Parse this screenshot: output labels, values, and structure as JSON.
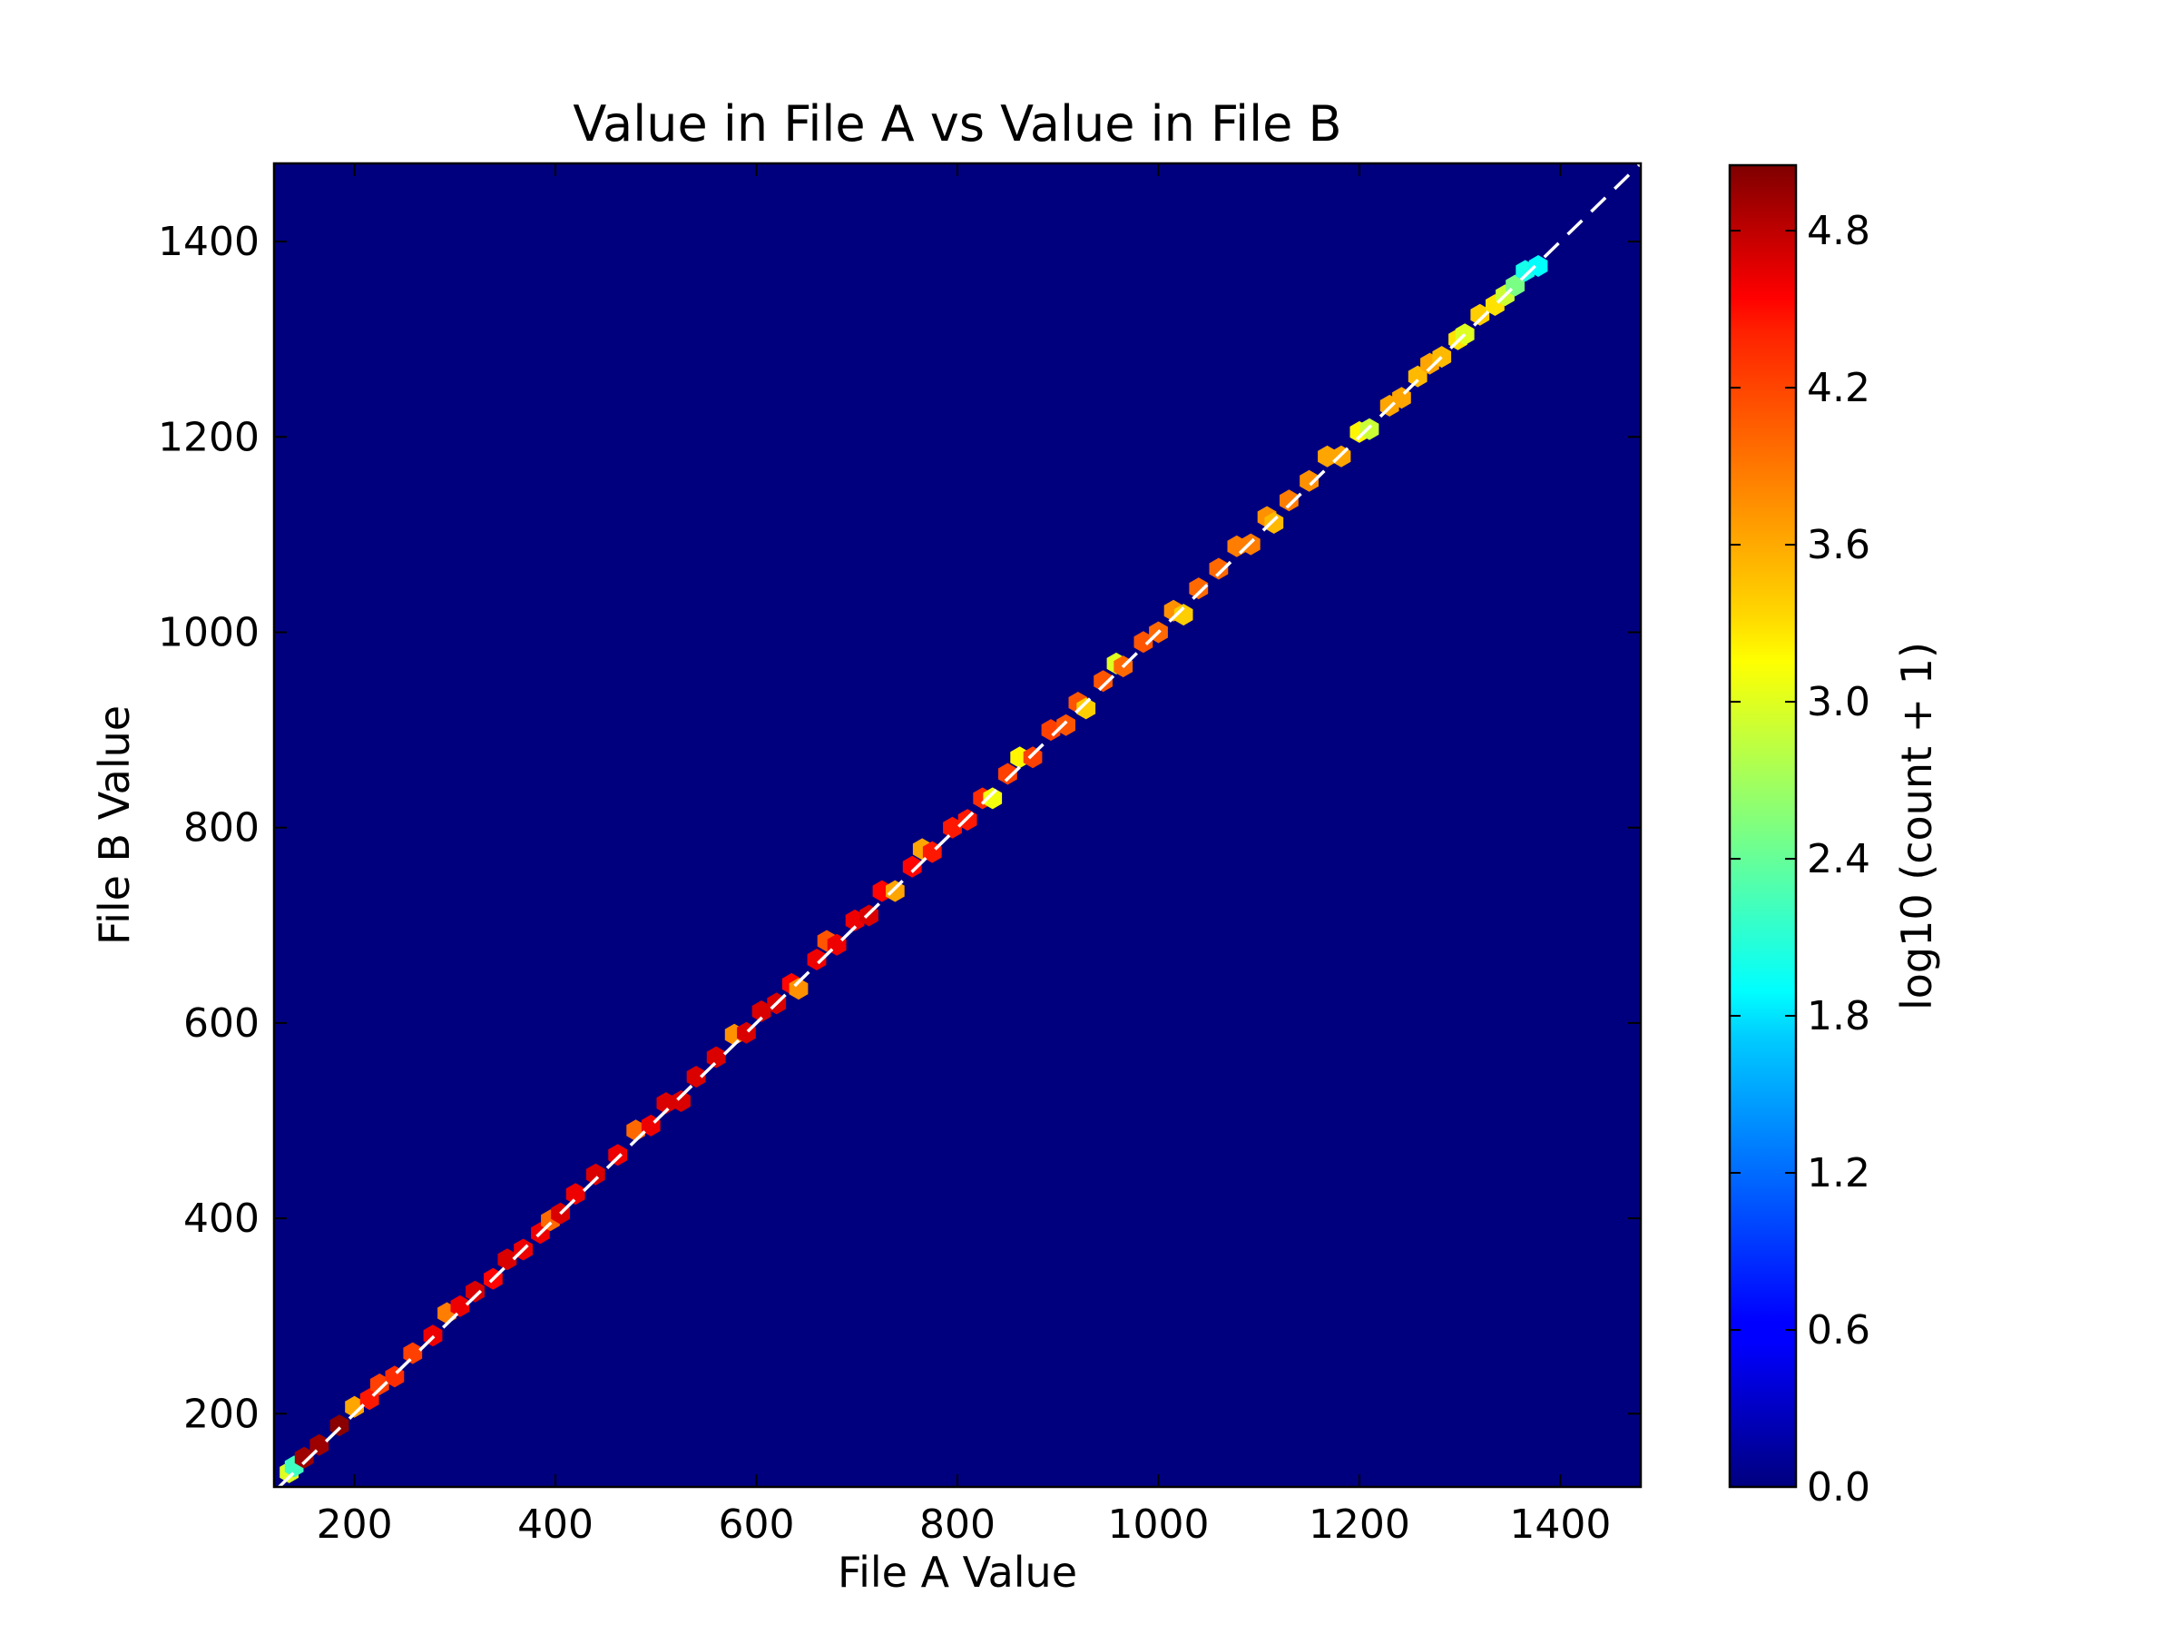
{
  "chart_data": {
    "type": "hexbin",
    "title": "Value in File A vs Value in File B",
    "xlabel": "File A Value",
    "ylabel": "File B Value",
    "xlim": [
      120,
      1480
    ],
    "ylim": [
      125,
      1480
    ],
    "xticks": [
      200,
      400,
      600,
      800,
      1000,
      1200,
      1400
    ],
    "yticks": [
      200,
      400,
      600,
      800,
      1000,
      1200,
      1400
    ],
    "background_color": "#00007f",
    "reference_line": {
      "style": "dashed",
      "color": "#ffffff",
      "from": [
        120,
        120
      ],
      "to": [
        1480,
        1480
      ]
    },
    "colorbar": {
      "label": "log10 (count + 1)",
      "range": [
        0,
        5.05
      ],
      "ticks": [
        "0.0",
        "0.6",
        "1.2",
        "1.8",
        "2.4",
        "3.0",
        "3.6",
        "4.2",
        "4.8"
      ],
      "colormap": "jet"
    },
    "points": [
      {
        "x": 135,
        "y": 140,
        "c": 3.0
      },
      {
        "x": 140,
        "y": 146,
        "c": 2.2
      },
      {
        "x": 150,
        "y": 155,
        "c": 4.9
      },
      {
        "x": 165,
        "y": 168,
        "c": 4.9
      },
      {
        "x": 185,
        "y": 188,
        "c": 5.0
      },
      {
        "x": 200,
        "y": 207,
        "c": 3.6
      },
      {
        "x": 215,
        "y": 215,
        "c": 4.3
      },
      {
        "x": 225,
        "y": 230,
        "c": 4.1
      },
      {
        "x": 240,
        "y": 238,
        "c": 4.2
      },
      {
        "x": 258,
        "y": 262,
        "c": 4.1
      },
      {
        "x": 278,
        "y": 280,
        "c": 4.5
      },
      {
        "x": 292,
        "y": 303,
        "c": 3.8
      },
      {
        "x": 305,
        "y": 310,
        "c": 4.5
      },
      {
        "x": 320,
        "y": 325,
        "c": 4.6
      },
      {
        "x": 338,
        "y": 338,
        "c": 4.4
      },
      {
        "x": 352,
        "y": 358,
        "c": 4.6
      },
      {
        "x": 368,
        "y": 368,
        "c": 4.5
      },
      {
        "x": 385,
        "y": 385,
        "c": 4.5
      },
      {
        "x": 395,
        "y": 398,
        "c": 3.9
      },
      {
        "x": 405,
        "y": 405,
        "c": 4.6
      },
      {
        "x": 420,
        "y": 425,
        "c": 4.5
      },
      {
        "x": 440,
        "y": 445,
        "c": 4.6
      },
      {
        "x": 462,
        "y": 465,
        "c": 4.5
      },
      {
        "x": 480,
        "y": 490,
        "c": 3.9
      },
      {
        "x": 495,
        "y": 495,
        "c": 4.5
      },
      {
        "x": 510,
        "y": 518,
        "c": 4.6
      },
      {
        "x": 525,
        "y": 520,
        "c": 4.6
      },
      {
        "x": 540,
        "y": 545,
        "c": 4.6
      },
      {
        "x": 560,
        "y": 565,
        "c": 4.6
      },
      {
        "x": 578,
        "y": 588,
        "c": 3.7
      },
      {
        "x": 590,
        "y": 590,
        "c": 4.6
      },
      {
        "x": 605,
        "y": 612,
        "c": 4.6
      },
      {
        "x": 620,
        "y": 620,
        "c": 4.6
      },
      {
        "x": 635,
        "y": 640,
        "c": 4.4
      },
      {
        "x": 642,
        "y": 635,
        "c": 3.7
      },
      {
        "x": 660,
        "y": 665,
        "c": 4.5
      },
      {
        "x": 670,
        "y": 684,
        "c": 4.0
      },
      {
        "x": 680,
        "y": 680,
        "c": 4.5
      },
      {
        "x": 698,
        "y": 705,
        "c": 4.5
      },
      {
        "x": 712,
        "y": 710,
        "c": 4.6
      },
      {
        "x": 725,
        "y": 735,
        "c": 4.4
      },
      {
        "x": 738,
        "y": 735,
        "c": 3.6
      },
      {
        "x": 755,
        "y": 760,
        "c": 4.4
      },
      {
        "x": 765,
        "y": 778,
        "c": 3.6
      },
      {
        "x": 775,
        "y": 775,
        "c": 4.3
      },
      {
        "x": 795,
        "y": 800,
        "c": 4.3
      },
      {
        "x": 810,
        "y": 808,
        "c": 4.3
      },
      {
        "x": 825,
        "y": 830,
        "c": 4.2
      },
      {
        "x": 835,
        "y": 830,
        "c": 3.1
      },
      {
        "x": 850,
        "y": 855,
        "c": 4.1
      },
      {
        "x": 862,
        "y": 872,
        "c": 3.2
      },
      {
        "x": 875,
        "y": 872,
        "c": 4.1
      },
      {
        "x": 893,
        "y": 900,
        "c": 4.1
      },
      {
        "x": 908,
        "y": 905,
        "c": 4.0
      },
      {
        "x": 920,
        "y": 928,
        "c": 4.0
      },
      {
        "x": 928,
        "y": 922,
        "c": 3.4
      },
      {
        "x": 945,
        "y": 950,
        "c": 4.0
      },
      {
        "x": 958,
        "y": 968,
        "c": 3.0
      },
      {
        "x": 965,
        "y": 965,
        "c": 3.9
      },
      {
        "x": 985,
        "y": 990,
        "c": 4.0
      },
      {
        "x": 1000,
        "y": 1000,
        "c": 3.9
      },
      {
        "x": 1015,
        "y": 1022,
        "c": 3.7
      },
      {
        "x": 1025,
        "y": 1018,
        "c": 3.4
      },
      {
        "x": 1040,
        "y": 1045,
        "c": 3.9
      },
      {
        "x": 1060,
        "y": 1065,
        "c": 3.9
      },
      {
        "x": 1078,
        "y": 1088,
        "c": 3.8
      },
      {
        "x": 1092,
        "y": 1090,
        "c": 3.8
      },
      {
        "x": 1108,
        "y": 1118,
        "c": 3.7
      },
      {
        "x": 1115,
        "y": 1112,
        "c": 3.5
      },
      {
        "x": 1130,
        "y": 1135,
        "c": 3.8
      },
      {
        "x": 1150,
        "y": 1155,
        "c": 3.7
      },
      {
        "x": 1168,
        "y": 1180,
        "c": 3.6
      },
      {
        "x": 1182,
        "y": 1180,
        "c": 3.6
      },
      {
        "x": 1200,
        "y": 1205,
        "c": 3.2
      },
      {
        "x": 1210,
        "y": 1208,
        "c": 2.9
      },
      {
        "x": 1230,
        "y": 1232,
        "c": 3.6
      },
      {
        "x": 1242,
        "y": 1240,
        "c": 3.6
      },
      {
        "x": 1258,
        "y": 1262,
        "c": 3.5
      },
      {
        "x": 1270,
        "y": 1275,
        "c": 3.6
      },
      {
        "x": 1282,
        "y": 1282,
        "c": 3.5
      },
      {
        "x": 1298,
        "y": 1300,
        "c": 3.3
      },
      {
        "x": 1305,
        "y": 1305,
        "c": 3.0
      },
      {
        "x": 1320,
        "y": 1325,
        "c": 3.4
      },
      {
        "x": 1335,
        "y": 1335,
        "c": 3.3
      },
      {
        "x": 1345,
        "y": 1345,
        "c": 2.9
      },
      {
        "x": 1355,
        "y": 1355,
        "c": 2.5
      },
      {
        "x": 1365,
        "y": 1370,
        "c": 2.0
      },
      {
        "x": 1378,
        "y": 1375,
        "c": 1.9
      }
    ]
  }
}
